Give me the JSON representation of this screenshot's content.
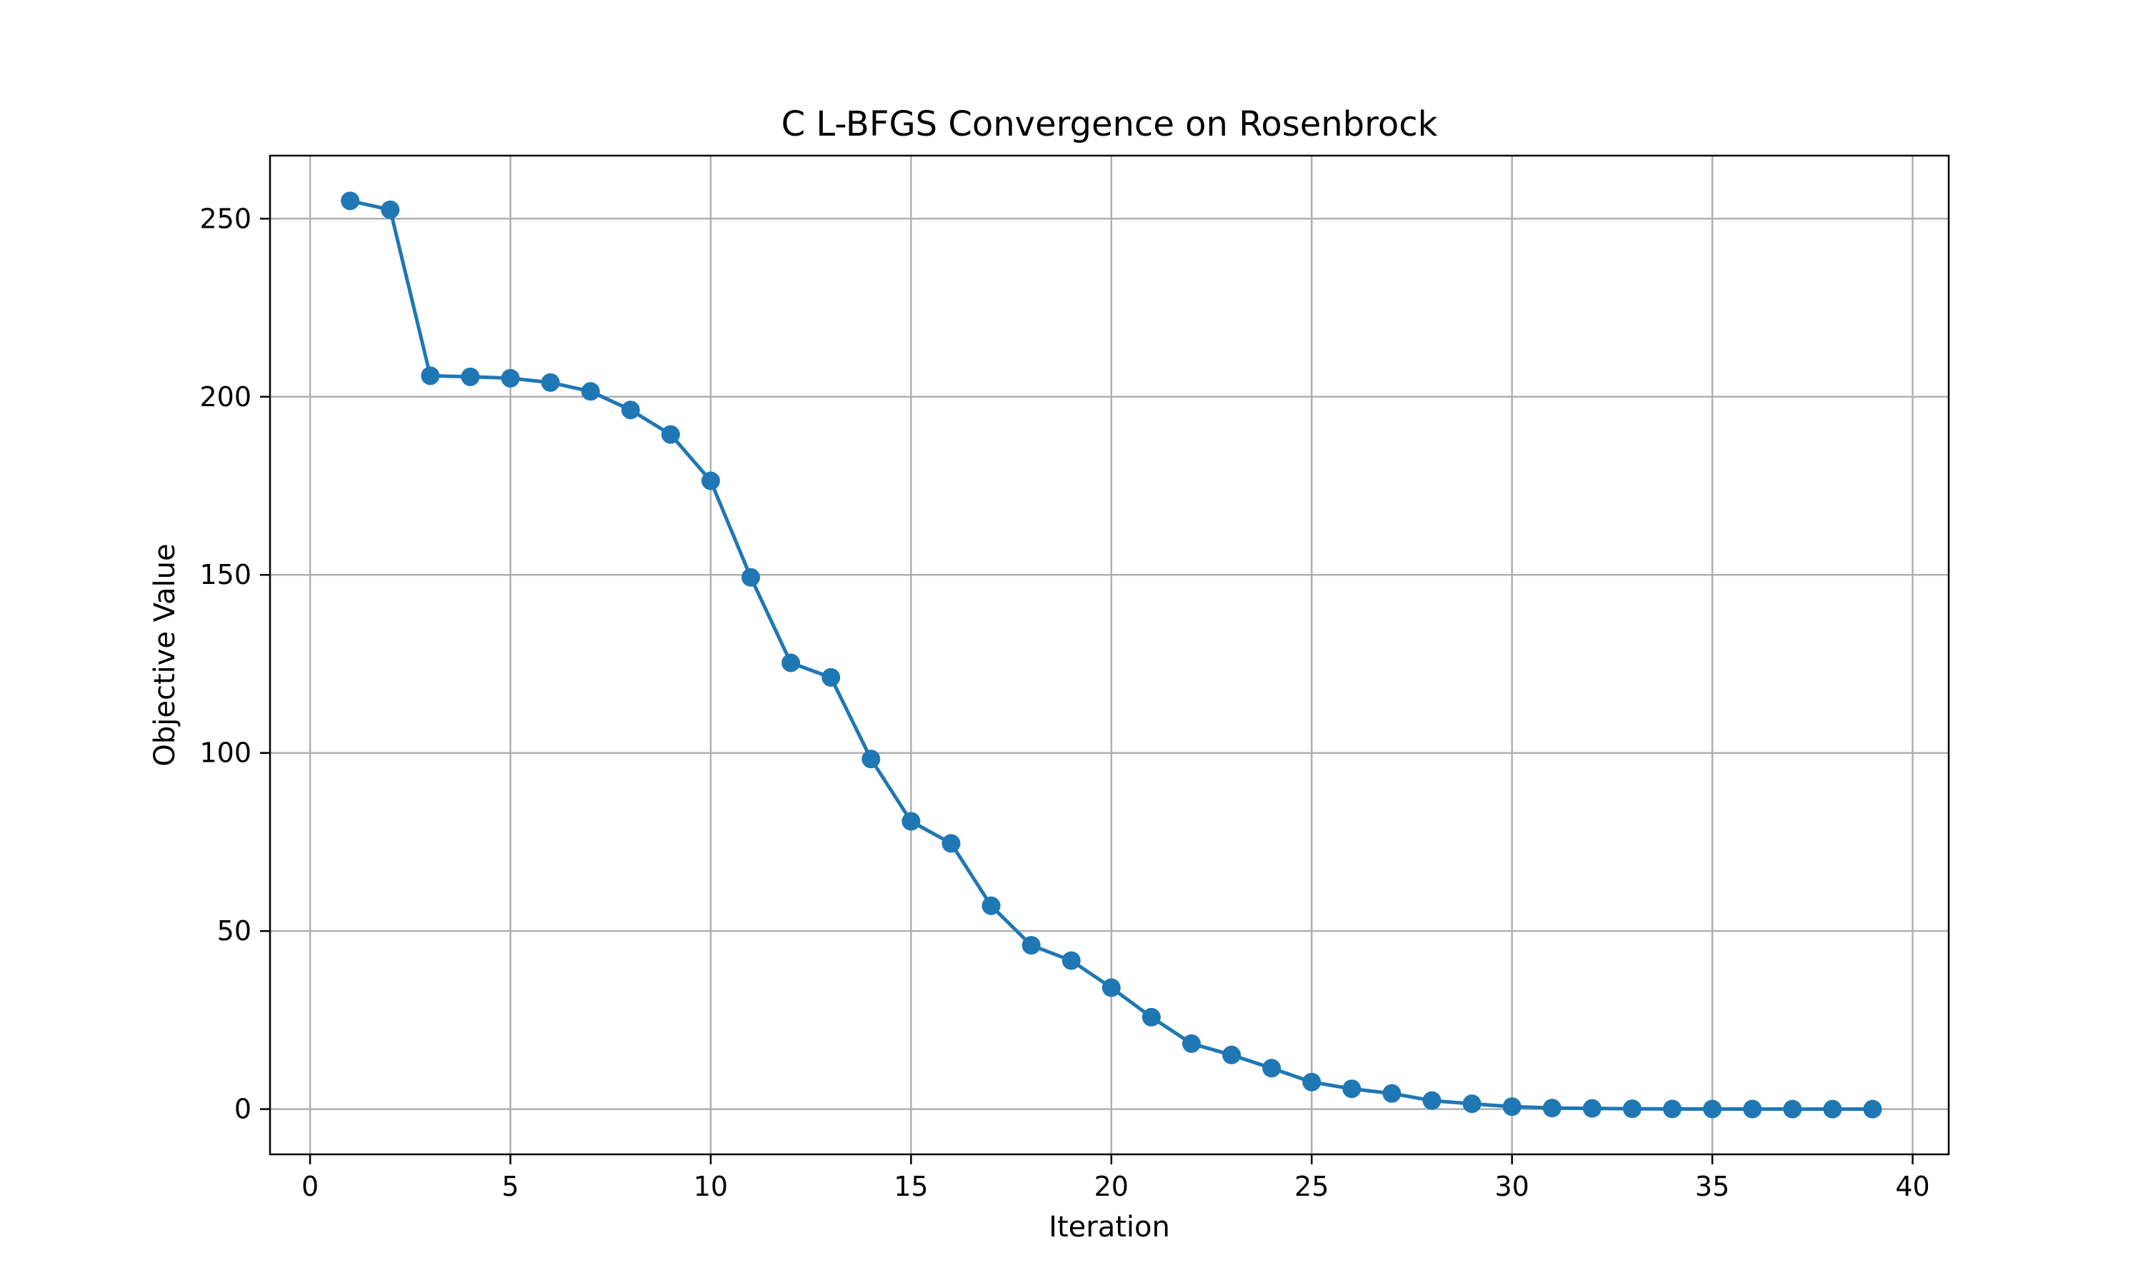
{
  "chart_data": {
    "type": "line",
    "title": "C L-BFGS Convergence on Rosenbrock",
    "xlabel": "Iteration",
    "ylabel": "Objective Value",
    "xlim": [
      -1,
      40.9
    ],
    "ylim": [
      -12.7,
      267.7
    ],
    "xticks": [
      0,
      5,
      10,
      15,
      20,
      25,
      30,
      35,
      40
    ],
    "yticks": [
      0,
      50,
      100,
      150,
      200,
      250
    ],
    "grid": true,
    "legend": "none",
    "line_color": "#1f77b4",
    "marker": "circle",
    "series": [
      {
        "x": [
          1,
          2,
          3,
          4,
          5,
          6,
          7,
          8,
          9,
          10,
          11,
          12,
          13,
          14,
          15,
          16,
          17,
          18,
          19,
          20,
          21,
          22,
          23,
          24,
          25,
          26,
          27,
          28,
          29,
          30,
          31,
          32,
          33,
          34,
          35,
          36,
          37,
          38,
          39
        ],
        "values": [
          255.0,
          252.5,
          205.9,
          205.6,
          205.2,
          204.0,
          201.5,
          196.3,
          189.4,
          176.4,
          149.3,
          125.3,
          121.2,
          98.3,
          80.8,
          74.6,
          57.1,
          46.0,
          41.7,
          34.1,
          25.8,
          18.4,
          15.2,
          11.5,
          7.6,
          5.7,
          4.4,
          2.4,
          1.5,
          0.7,
          0.3,
          0.2,
          0.1,
          0.05,
          0.03,
          0.02,
          0.01,
          0.0,
          0.0
        ]
      }
    ]
  }
}
